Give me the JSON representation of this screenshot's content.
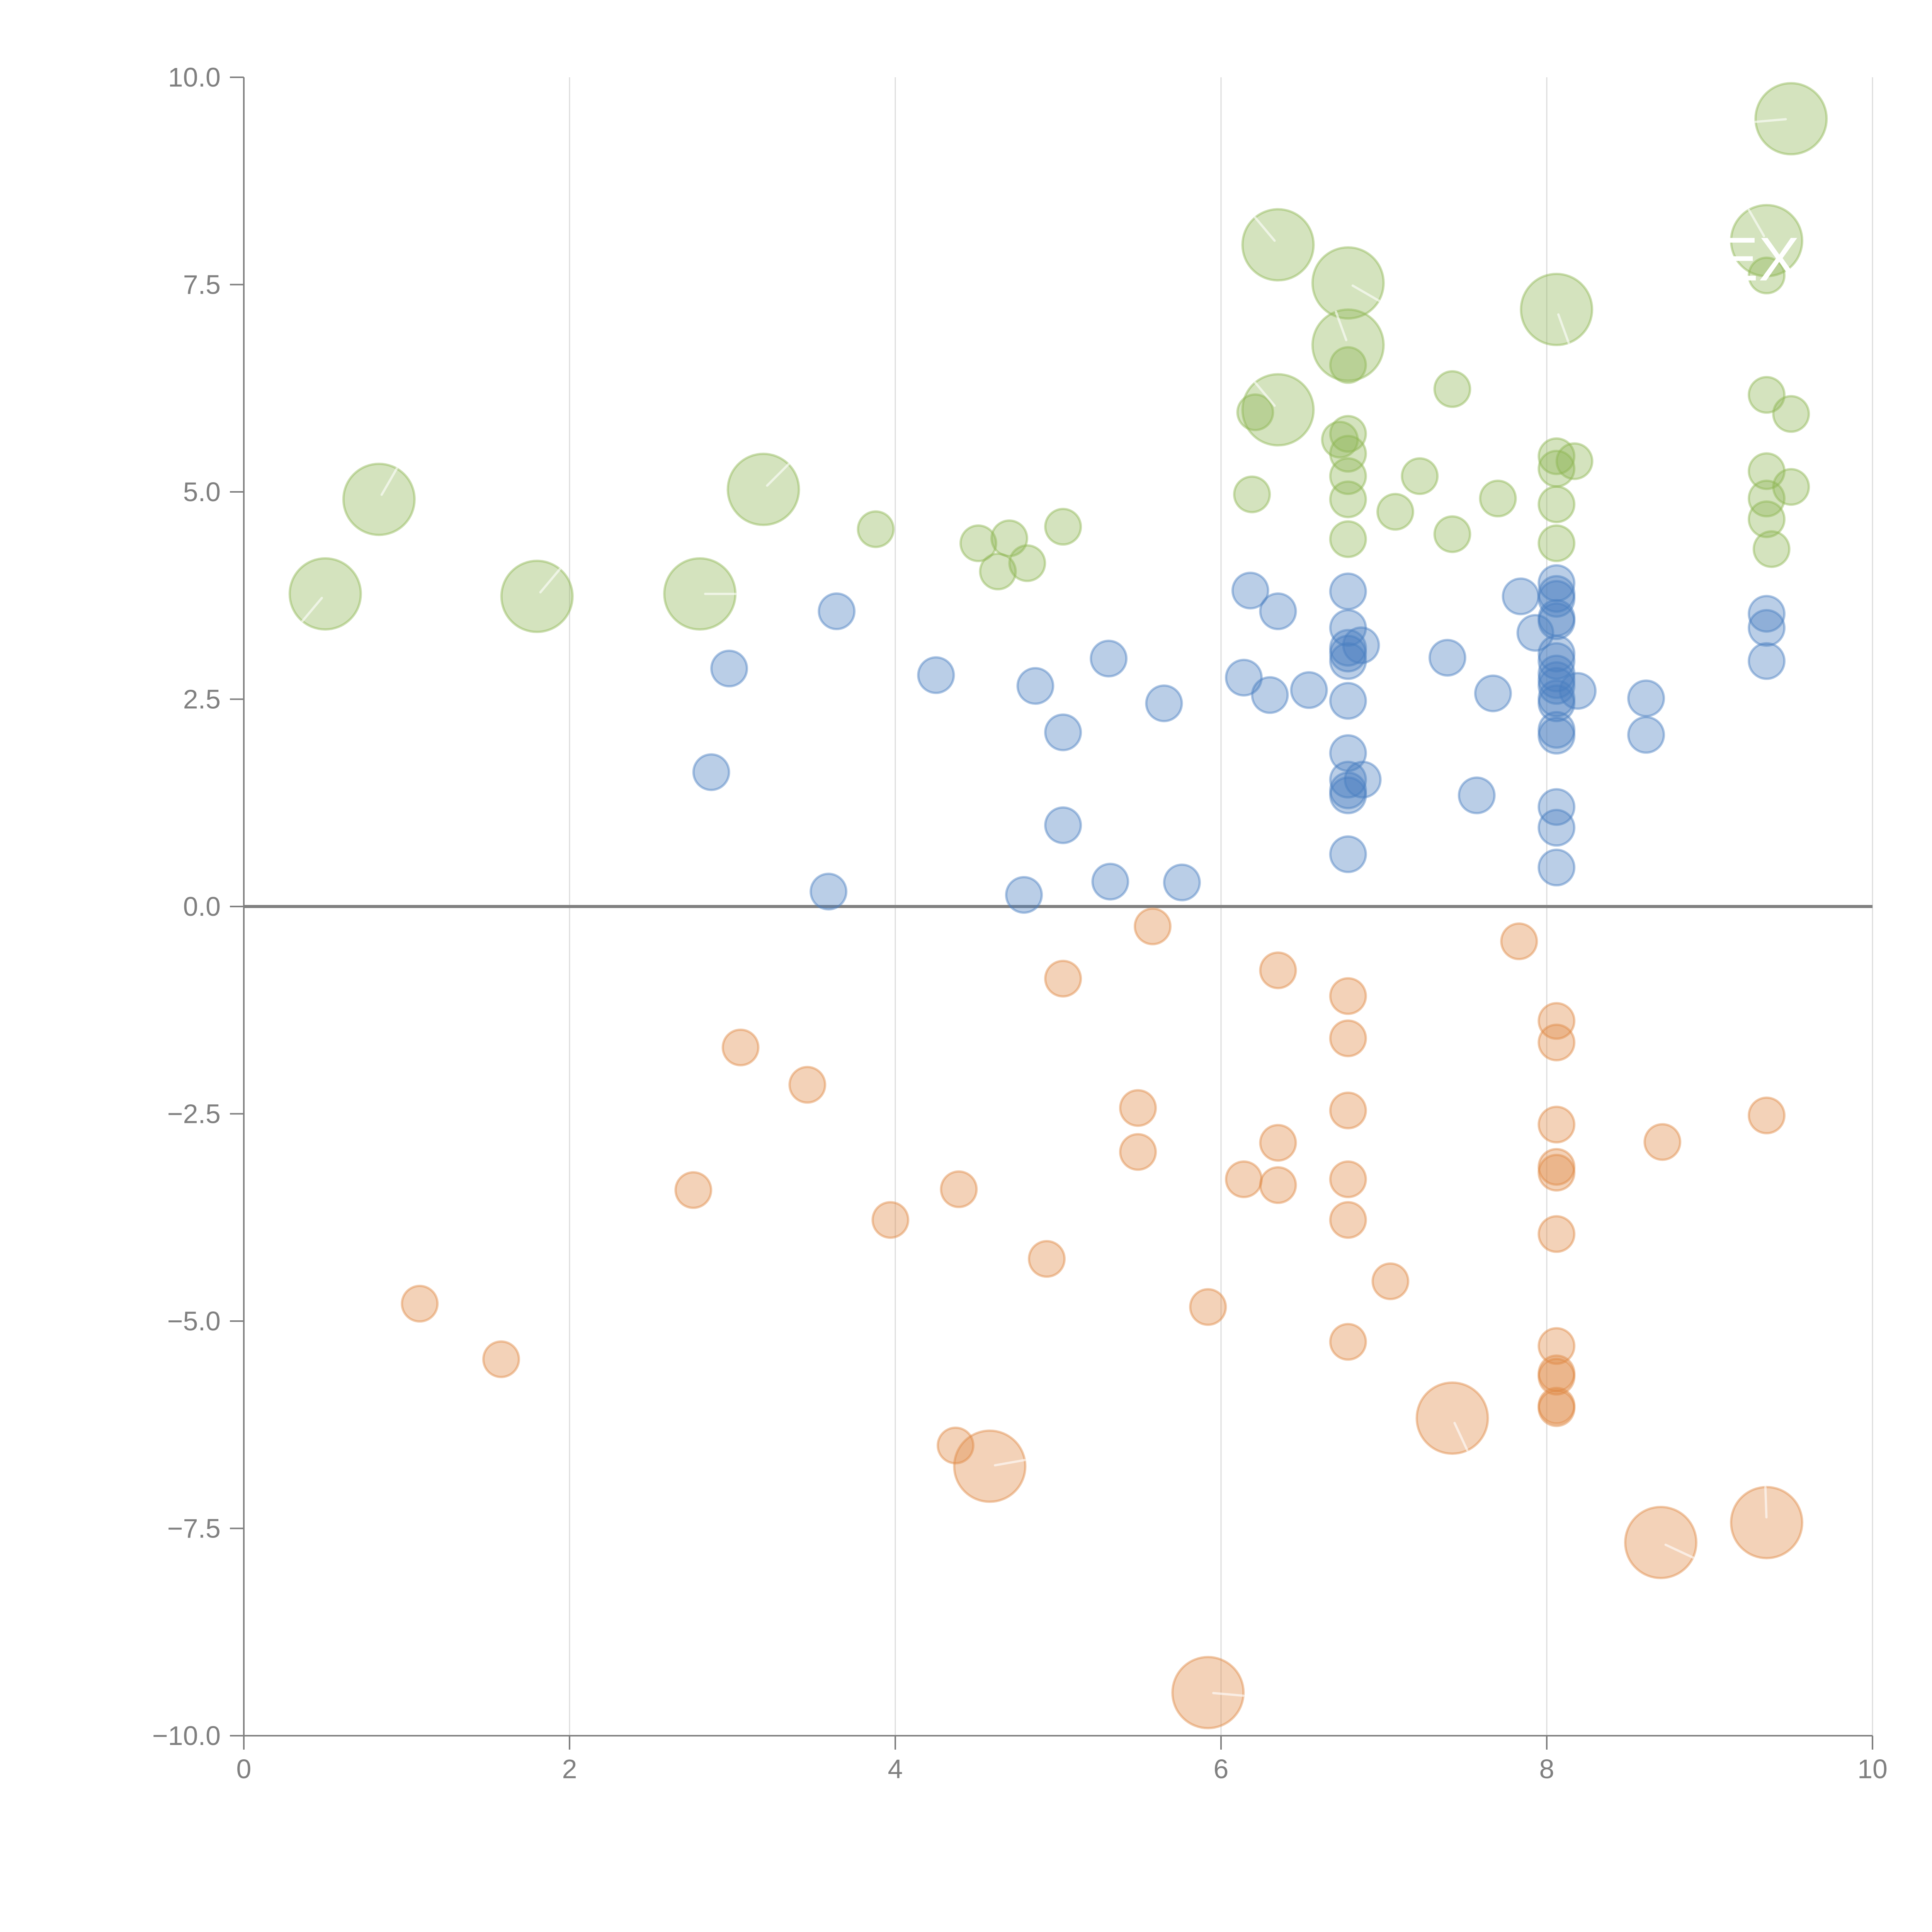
{
  "chart_data": {
    "type": "scatter",
    "subtype": "bubble",
    "title": "",
    "xlabel": "",
    "ylabel": "",
    "xlim": [
      0,
      10
    ],
    "ylim": [
      -10,
      10
    ],
    "x_ticks": [
      "0",
      "2",
      "4",
      "6",
      "8",
      "10"
    ],
    "x_tick_values": [
      0,
      2,
      4,
      6,
      8,
      10
    ],
    "y_ticks": [
      "10.0",
      "7.5",
      "5.0",
      "2.5",
      "0.0",
      "−2.5",
      "−5.0",
      "−7.5",
      "−10.0"
    ],
    "y_tick_values": [
      10,
      7.5,
      5,
      2.5,
      0,
      -2.5,
      -5,
      -7.5,
      -10
    ],
    "grid": "vertical",
    "zero_line": true,
    "legend": "none",
    "annotations": [
      "EX"
    ],
    "size_legend": {
      "small": 1,
      "large": 2
    },
    "series": [
      {
        "name": "green",
        "color": "#8db553",
        "points": [
          {
            "x": 0.5,
            "y": 3.77,
            "size": 2,
            "angle": 130
          },
          {
            "x": 0.83,
            "y": 4.91,
            "size": 2,
            "angle": -60
          },
          {
            "x": 1.8,
            "y": 3.74,
            "size": 2,
            "angle": -50
          },
          {
            "x": 2.8,
            "y": 3.77,
            "size": 2,
            "angle": 0
          },
          {
            "x": 3.19,
            "y": 5.03,
            "size": 2,
            "angle": -45
          },
          {
            "x": 3.88,
            "y": 4.55,
            "size": 1
          },
          {
            "x": 4.51,
            "y": 4.38,
            "size": 1
          },
          {
            "x": 4.7,
            "y": 4.44,
            "size": 1
          },
          {
            "x": 4.63,
            "y": 4.04,
            "size": 1
          },
          {
            "x": 4.81,
            "y": 4.14,
            "size": 1
          },
          {
            "x": 5.03,
            "y": 4.58,
            "size": 1
          },
          {
            "x": 6.19,
            "y": 4.97,
            "size": 1
          },
          {
            "x": 6.21,
            "y": 5.96,
            "size": 1
          },
          {
            "x": 6.35,
            "y": 7.98,
            "size": 2,
            "angle": -130
          },
          {
            "x": 6.35,
            "y": 5.99,
            "size": 2,
            "angle": -130
          },
          {
            "x": 6.78,
            "y": 7.52,
            "size": 2,
            "angle": 30
          },
          {
            "x": 6.78,
            "y": 6.77,
            "size": 2,
            "angle": -110
          },
          {
            "x": 6.78,
            "y": 6.53,
            "size": 1
          },
          {
            "x": 6.78,
            "y": 5.7,
            "size": 1
          },
          {
            "x": 6.73,
            "y": 5.63,
            "size": 1
          },
          {
            "x": 6.78,
            "y": 5.46,
            "size": 1
          },
          {
            "x": 6.78,
            "y": 5.19,
            "size": 1
          },
          {
            "x": 6.78,
            "y": 4.91,
            "size": 1
          },
          {
            "x": 6.78,
            "y": 4.43,
            "size": 1
          },
          {
            "x": 7.07,
            "y": 4.76,
            "size": 1
          },
          {
            "x": 7.22,
            "y": 5.19,
            "size": 1
          },
          {
            "x": 7.42,
            "y": 6.24,
            "size": 1
          },
          {
            "x": 7.42,
            "y": 4.49,
            "size": 1
          },
          {
            "x": 7.7,
            "y": 4.92,
            "size": 1
          },
          {
            "x": 8.06,
            "y": 7.2,
            "size": 2,
            "angle": 70
          },
          {
            "x": 8.06,
            "y": 5.43,
            "size": 1
          },
          {
            "x": 8.06,
            "y": 5.28,
            "size": 1
          },
          {
            "x": 8.06,
            "y": 4.85,
            "size": 1
          },
          {
            "x": 8.06,
            "y": 4.38,
            "size": 1
          },
          {
            "x": 8.17,
            "y": 5.37,
            "size": 1
          },
          {
            "x": 9.35,
            "y": 8.03,
            "size": 2,
            "angle": -120
          },
          {
            "x": 9.35,
            "y": 7.61,
            "size": 1
          },
          {
            "x": 9.35,
            "y": 6.17,
            "size": 1
          },
          {
            "x": 9.35,
            "y": 5.25,
            "size": 1
          },
          {
            "x": 9.35,
            "y": 4.92,
            "size": 1
          },
          {
            "x": 9.35,
            "y": 4.67,
            "size": 1
          },
          {
            "x": 9.38,
            "y": 4.31,
            "size": 1
          },
          {
            "x": 9.5,
            "y": 9.5,
            "size": 2,
            "angle": 175
          },
          {
            "x": 9.5,
            "y": 5.94,
            "size": 1
          },
          {
            "x": 9.5,
            "y": 5.06,
            "size": 1
          }
        ]
      },
      {
        "name": "blue",
        "color": "#4a7fc1",
        "points": [
          {
            "x": 2.98,
            "y": 2.87,
            "size": 1
          },
          {
            "x": 2.87,
            "y": 1.62,
            "size": 1
          },
          {
            "x": 3.64,
            "y": 3.56,
            "size": 1
          },
          {
            "x": 3.59,
            "y": 0.18,
            "size": 1
          },
          {
            "x": 4.25,
            "y": 2.79,
            "size": 1
          },
          {
            "x": 4.86,
            "y": 2.66,
            "size": 1
          },
          {
            "x": 4.79,
            "y": 0.14,
            "size": 1
          },
          {
            "x": 5.03,
            "y": 2.1,
            "size": 1
          },
          {
            "x": 5.03,
            "y": 0.98,
            "size": 1
          },
          {
            "x": 5.31,
            "y": 2.99,
            "size": 1
          },
          {
            "x": 5.32,
            "y": 0.3,
            "size": 1
          },
          {
            "x": 5.65,
            "y": 2.45,
            "size": 1
          },
          {
            "x": 5.76,
            "y": 0.29,
            "size": 1
          },
          {
            "x": 6.18,
            "y": 3.81,
            "size": 1
          },
          {
            "x": 6.14,
            "y": 2.76,
            "size": 1
          },
          {
            "x": 6.3,
            "y": 2.55,
            "size": 1
          },
          {
            "x": 6.35,
            "y": 3.56,
            "size": 1
          },
          {
            "x": 6.54,
            "y": 2.61,
            "size": 1
          },
          {
            "x": 6.78,
            "y": 3.8,
            "size": 1
          },
          {
            "x": 6.78,
            "y": 3.36,
            "size": 1
          },
          {
            "x": 6.78,
            "y": 3.12,
            "size": 1
          },
          {
            "x": 6.78,
            "y": 3.05,
            "size": 1
          },
          {
            "x": 6.78,
            "y": 2.96,
            "size": 1
          },
          {
            "x": 6.86,
            "y": 3.15,
            "size": 1
          },
          {
            "x": 6.78,
            "y": 2.48,
            "size": 1
          },
          {
            "x": 6.78,
            "y": 1.85,
            "size": 1
          },
          {
            "x": 6.78,
            "y": 1.53,
            "size": 1
          },
          {
            "x": 6.87,
            "y": 1.53,
            "size": 1
          },
          {
            "x": 6.78,
            "y": 1.4,
            "size": 1
          },
          {
            "x": 6.78,
            "y": 1.34,
            "size": 1
          },
          {
            "x": 6.78,
            "y": 0.63,
            "size": 1
          },
          {
            "x": 7.39,
            "y": 3.0,
            "size": 1
          },
          {
            "x": 7.57,
            "y": 1.34,
            "size": 1
          },
          {
            "x": 7.67,
            "y": 2.57,
            "size": 1
          },
          {
            "x": 7.84,
            "y": 3.74,
            "size": 1
          },
          {
            "x": 7.93,
            "y": 3.3,
            "size": 1
          },
          {
            "x": 8.06,
            "y": 3.9,
            "size": 1
          },
          {
            "x": 8.06,
            "y": 3.77,
            "size": 1
          },
          {
            "x": 8.06,
            "y": 3.71,
            "size": 1
          },
          {
            "x": 8.06,
            "y": 3.48,
            "size": 1
          },
          {
            "x": 8.06,
            "y": 3.44,
            "size": 1
          },
          {
            "x": 8.06,
            "y": 3.05,
            "size": 1
          },
          {
            "x": 8.06,
            "y": 2.96,
            "size": 1
          },
          {
            "x": 8.06,
            "y": 2.81,
            "size": 1
          },
          {
            "x": 8.06,
            "y": 2.73,
            "size": 1
          },
          {
            "x": 8.06,
            "y": 2.66,
            "size": 1
          },
          {
            "x": 8.06,
            "y": 2.51,
            "size": 1
          },
          {
            "x": 8.06,
            "y": 2.45,
            "size": 1
          },
          {
            "x": 8.06,
            "y": 2.13,
            "size": 1
          },
          {
            "x": 8.06,
            "y": 2.06,
            "size": 1
          },
          {
            "x": 8.06,
            "y": 1.2,
            "size": 1
          },
          {
            "x": 8.06,
            "y": 0.95,
            "size": 1
          },
          {
            "x": 8.06,
            "y": 0.47,
            "size": 1
          },
          {
            "x": 8.19,
            "y": 2.6,
            "size": 1
          },
          {
            "x": 8.61,
            "y": 2.51,
            "size": 1
          },
          {
            "x": 8.61,
            "y": 2.07,
            "size": 1
          },
          {
            "x": 9.35,
            "y": 3.53,
            "size": 1
          },
          {
            "x": 9.35,
            "y": 3.36,
            "size": 1
          },
          {
            "x": 9.35,
            "y": 2.96,
            "size": 1
          }
        ]
      },
      {
        "name": "orange",
        "color": "#e08a45",
        "points": [
          {
            "x": 1.08,
            "y": -4.79,
            "size": 1
          },
          {
            "x": 1.58,
            "y": -5.46,
            "size": 1
          },
          {
            "x": 2.76,
            "y": -3.42,
            "size": 1
          },
          {
            "x": 3.05,
            "y": -1.7,
            "size": 1
          },
          {
            "x": 3.46,
            "y": -2.15,
            "size": 1
          },
          {
            "x": 3.97,
            "y": -3.78,
            "size": 1
          },
          {
            "x": 4.39,
            "y": -3.41,
            "size": 1
          },
          {
            "x": 4.37,
            "y": -6.5,
            "size": 1
          },
          {
            "x": 4.58,
            "y": -6.75,
            "size": 2,
            "angle": -10
          },
          {
            "x": 4.93,
            "y": -4.25,
            "size": 1
          },
          {
            "x": 5.03,
            "y": -0.87,
            "size": 1
          },
          {
            "x": 5.49,
            "y": -2.43,
            "size": 1
          },
          {
            "x": 5.49,
            "y": -2.96,
            "size": 1
          },
          {
            "x": 5.58,
            "y": -0.24,
            "size": 1
          },
          {
            "x": 5.92,
            "y": -4.83,
            "size": 1
          },
          {
            "x": 5.92,
            "y": -9.48,
            "size": 2,
            "angle": 5
          },
          {
            "x": 6.14,
            "y": -3.29,
            "size": 1
          },
          {
            "x": 6.35,
            "y": -0.77,
            "size": 1
          },
          {
            "x": 6.35,
            "y": -2.85,
            "size": 1
          },
          {
            "x": 6.35,
            "y": -3.36,
            "size": 1
          },
          {
            "x": 6.78,
            "y": -1.08,
            "size": 1
          },
          {
            "x": 6.78,
            "y": -1.59,
            "size": 1
          },
          {
            "x": 6.78,
            "y": -2.46,
            "size": 1
          },
          {
            "x": 6.78,
            "y": -3.29,
            "size": 1
          },
          {
            "x": 6.78,
            "y": -3.78,
            "size": 1
          },
          {
            "x": 6.78,
            "y": -5.25,
            "size": 1
          },
          {
            "x": 7.04,
            "y": -4.52,
            "size": 1
          },
          {
            "x": 7.42,
            "y": -6.17,
            "size": 2,
            "angle": 65
          },
          {
            "x": 7.83,
            "y": -0.42,
            "size": 1
          },
          {
            "x": 8.06,
            "y": -1.38,
            "size": 1
          },
          {
            "x": 8.06,
            "y": -1.64,
            "size": 1
          },
          {
            "x": 8.06,
            "y": -2.63,
            "size": 1
          },
          {
            "x": 8.06,
            "y": -3.14,
            "size": 1
          },
          {
            "x": 8.06,
            "y": -3.21,
            "size": 1
          },
          {
            "x": 8.06,
            "y": -3.95,
            "size": 1
          },
          {
            "x": 8.06,
            "y": -5.3,
            "size": 1
          },
          {
            "x": 8.06,
            "y": -5.63,
            "size": 1
          },
          {
            "x": 8.06,
            "y": -5.67,
            "size": 1
          },
          {
            "x": 8.06,
            "y": -6.02,
            "size": 1
          },
          {
            "x": 8.06,
            "y": -6.05,
            "size": 1
          },
          {
            "x": 8.71,
            "y": -2.84,
            "size": 1
          },
          {
            "x": 8.7,
            "y": -7.67,
            "size": 2,
            "angle": 25
          },
          {
            "x": 9.35,
            "y": -2.52,
            "size": 1
          },
          {
            "x": 9.35,
            "y": -7.43,
            "size": 2,
            "angle": -92
          }
        ]
      }
    ]
  }
}
